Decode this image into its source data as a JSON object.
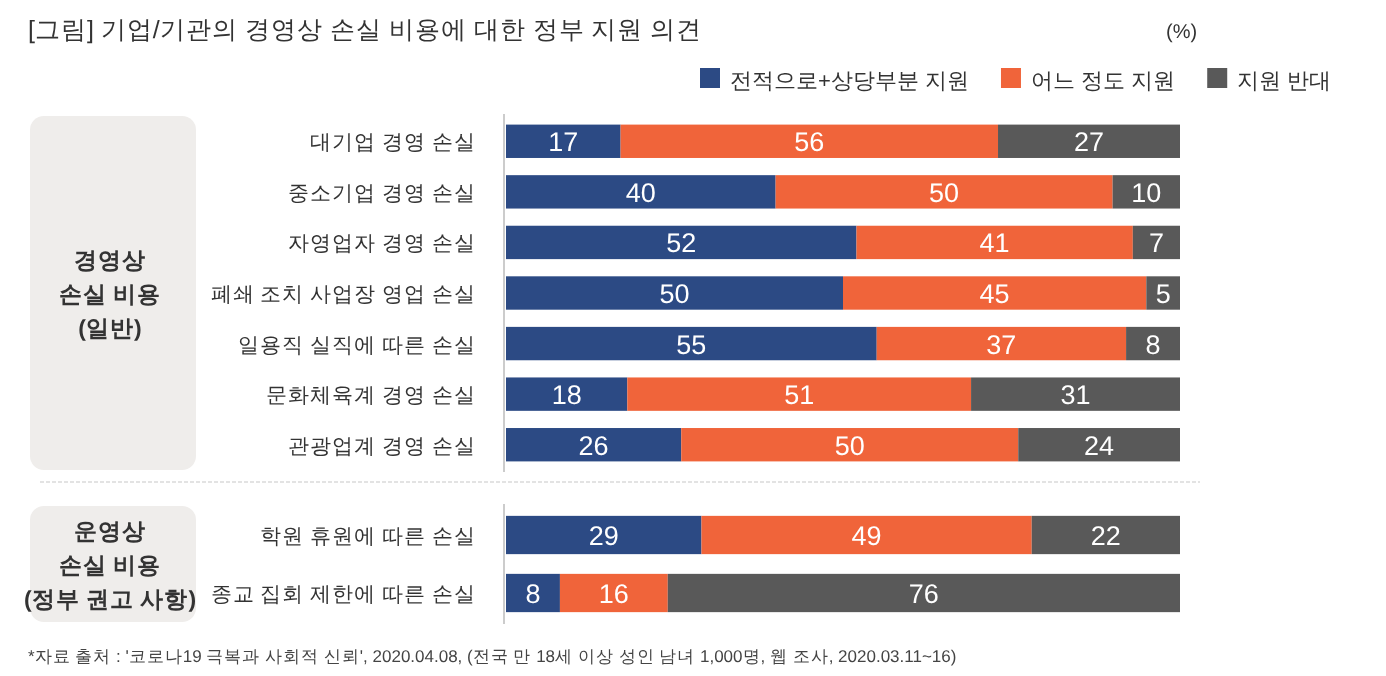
{
  "chart_data": [
    {
      "type": "bar",
      "orientation": "horizontal",
      "stacked": true,
      "data_labels": true,
      "legend": "top right",
      "title": "경영상\n손실 비용\n(일반)",
      "annotations": [
        "[그림] 기업/기관의 경영상 손실 비용에 대한 정부 지원 의견",
        "(%)"
      ],
      "categories": [
        "대기업 경영 손실",
        "중소기업 경영 손실",
        "자영업자 경영 손실",
        "폐쇄 조치 사업장 영업 손실",
        "일용직 실직에 따른 손실",
        "문화체육계 경영 손실",
        "관광업계 경영 손실"
      ],
      "series": [
        {
          "name": "전적으로+상당부분 지원",
          "color": "#2c4a84",
          "values": [
            17,
            40,
            52,
            50,
            55,
            18,
            26
          ]
        },
        {
          "name": "어느 정도 지원",
          "color": "#f0643a",
          "values": [
            56,
            50,
            41,
            45,
            37,
            51,
            50
          ]
        },
        {
          "name": "지원 반대",
          "color": "#595959",
          "values": [
            27,
            10,
            7,
            5,
            8,
            31,
            24
          ]
        }
      ]
    },
    {
      "type": "bar",
      "orientation": "horizontal",
      "stacked": true,
      "data_labels": true,
      "title": "운영상\n손실 비용\n(정부 권고 사항)",
      "annotations": [
        "*자료 출처 : '코로나19 극복과 사회적 신뢰', 2020.04.08, (전국 만 18세 이상 성인 남녀 1,000명, 웹 조사, 2020.03.11~16)"
      ],
      "categories": [
        "학원 휴원에 따른 손실",
        "종교 집회 제한에 따른 손실"
      ],
      "series": [
        {
          "color": "#2c4a84",
          "values": [
            29,
            8
          ]
        },
        {
          "color": "#f0643a",
          "values": [
            49,
            16
          ]
        },
        {
          "color": "#595959",
          "values": [
            22,
            76
          ]
        }
      ]
    }
  ]
}
